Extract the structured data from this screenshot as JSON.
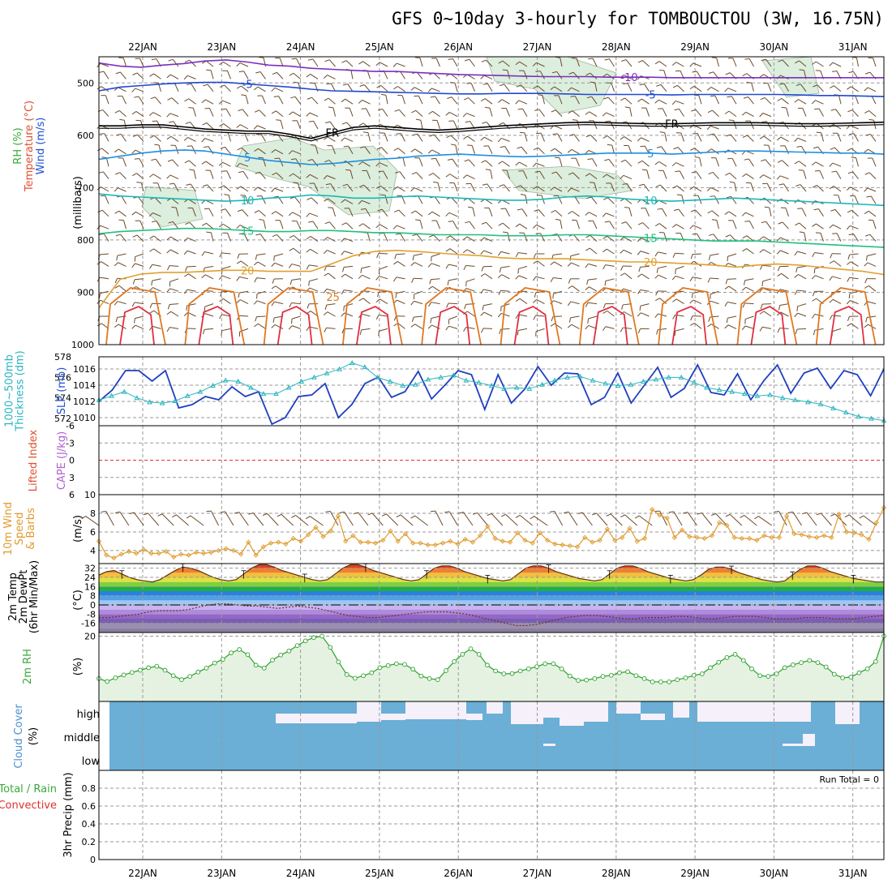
{
  "title": "GFS 0~10day 3-hourly for TOMBOUCTOU (3W, 16.75N)",
  "dates": [
    "22JAN",
    "23JAN",
    "24JAN",
    "25JAN",
    "26JAN",
    "27JAN",
    "28JAN",
    "29JAN",
    "30JAN",
    "31JAN"
  ],
  "colors": {
    "cloud": "#6baed6",
    "cloud_clear": "#f5f0fa",
    "rh_fill": "#e5f2e2",
    "rh_line": "#2ca02c",
    "slp": "#1f3fbf",
    "thick": "#2ab5c0",
    "wind": "#e09a2c",
    "barb": "#6b4a2a",
    "li_line": "#e03030"
  },
  "chart_data": [
    {
      "name": "Temperature/RH/Wind cross-section",
      "type": "contour",
      "ylabel_left": [
        "RH (%)",
        "Temperature (°C)",
        "Wind (m/s)"
      ],
      "ylabel_right": "(millibars)",
      "yticks": [
        500,
        600,
        700,
        800,
        900,
        1000
      ],
      "ylim": [
        450,
        1000
      ],
      "isotherms": [
        {
          "level": "-10",
          "color": "#7b2fbf",
          "p": [
            462,
            468,
            470,
            466,
            463,
            458,
            456,
            460,
            466,
            468,
            472,
            474,
            476,
            478,
            478,
            480,
            482,
            484,
            485,
            486,
            487,
            488,
            488,
            488,
            489,
            489,
            489,
            490,
            490,
            490,
            490,
            490,
            490,
            490,
            490,
            490,
            490,
            490
          ]
        },
        {
          "level": "-5",
          "color": "#2049d0",
          "p": [
            515,
            508,
            505,
            502,
            500,
            499,
            499,
            502,
            505,
            508,
            512,
            515,
            516,
            517,
            518,
            519,
            520,
            521,
            521,
            520,
            520,
            520,
            521,
            522,
            522,
            522,
            522,
            523,
            522,
            522,
            522,
            522,
            522,
            523,
            524,
            524,
            525,
            526
          ]
        },
        {
          "level": "FR",
          "color": "#000000",
          "p": [
            582,
            582,
            580,
            580,
            584,
            588,
            590,
            592,
            592,
            598,
            606,
            595,
            585,
            582,
            585,
            588,
            590,
            588,
            585,
            582,
            580,
            578,
            576,
            575,
            576,
            577,
            578,
            578,
            577,
            576,
            576,
            576,
            577,
            578,
            578,
            577,
            576,
            575
          ]
        },
        {
          "level": "5",
          "color": "#1f8fe0",
          "p": [
            646,
            640,
            634,
            630,
            628,
            630,
            636,
            642,
            648,
            652,
            656,
            654,
            650,
            646,
            644,
            640,
            638,
            636,
            638,
            640,
            641,
            640,
            638,
            636,
            634,
            634,
            634,
            636,
            634,
            632,
            630,
            630,
            631,
            632,
            633,
            634,
            634,
            636
          ]
        },
        {
          "level": "10",
          "color": "#18b8b8",
          "p": [
            712,
            716,
            718,
            720,
            722,
            724,
            726,
            724,
            720,
            718,
            714,
            716,
            720,
            720,
            718,
            716,
            718,
            720,
            722,
            724,
            724,
            722,
            718,
            716,
            718,
            722,
            724,
            726,
            724,
            722,
            720,
            722,
            724,
            726,
            728,
            730,
            732,
            734
          ]
        },
        {
          "level": "15",
          "color": "#20c080",
          "p": [
            788,
            784,
            782,
            780,
            778,
            778,
            780,
            782,
            784,
            784,
            782,
            782,
            784,
            786,
            786,
            788,
            790,
            790,
            790,
            792,
            792,
            792,
            790,
            790,
            792,
            794,
            796,
            798,
            800,
            802,
            802,
            802,
            804,
            806,
            808,
            810,
            812,
            814
          ]
        },
        {
          "level": "20",
          "color": "#e0a030",
          "p": [
            930,
            875,
            865,
            862,
            862,
            860,
            858,
            858,
            860,
            860,
            860,
            845,
            830,
            822,
            820,
            822,
            825,
            828,
            830,
            834,
            836,
            836,
            836,
            838,
            840,
            842,
            842,
            844,
            846,
            848,
            852,
            848,
            846,
            848,
            852,
            856,
            860,
            866
          ]
        }
      ]
    },
    {
      "name": "Thickness / SLP",
      "type": "line",
      "ylabel_left": [
        "1000~500mb",
        "Thickness (dm)"
      ],
      "ylabel_right": "SLP (mb)",
      "yticks_left": [
        572,
        574,
        576,
        578
      ],
      "yticks_right": [
        1010,
        1012,
        1014,
        1016
      ],
      "ylim_left": [
        571.3,
        578
      ],
      "ylim_right": [
        1009,
        1017.5
      ],
      "series": [
        {
          "name": "SLP",
          "color": "#1f3fbf",
          "values": [
            1012,
            1013.4,
            1015.8,
            1015.8,
            1014.5,
            1015.8,
            1011.2,
            1011.6,
            1012.6,
            1012.2,
            1013.8,
            1012.6,
            1013.2,
            1009.2,
            1010,
            1012.6,
            1012.8,
            1014.2,
            1010,
            1011.6,
            1014.2,
            1015,
            1012.5,
            1013.2,
            1015.7,
            1012.3,
            1014,
            1015.8,
            1015.3,
            1011,
            1015.3,
            1011.8,
            1013.5,
            1016.3,
            1014,
            1015.5,
            1015.4,
            1011.6,
            1012.5,
            1015.5,
            1011.8,
            1014,
            1016.2,
            1012.5,
            1013.6,
            1016.5,
            1013.1,
            1012.8,
            1015.4,
            1012.2,
            1014.6,
            1016.5,
            1013,
            1015.5,
            1016.1,
            1013.6,
            1015.8,
            1015.3,
            1012.7,
            1016
          ]
        },
        {
          "name": "Thickness",
          "color": "#2ab5c0",
          "values": [
            573.8,
            574.2,
            574.6,
            574.0,
            573.6,
            573.5,
            573.7,
            574.2,
            574.6,
            575.2,
            575.7,
            575.6,
            575.0,
            574.4,
            574.4,
            575.0,
            575.6,
            576.0,
            576.4,
            576.8,
            577.4,
            577.0,
            576.0,
            575.6,
            575.2,
            575.3,
            575.8,
            576.0,
            576.2,
            575.7,
            575.5,
            575.2,
            574.9,
            575.0,
            574.9,
            575.3,
            575.7,
            576.0,
            576.1,
            575.7,
            575.4,
            575.2,
            575.3,
            575.6,
            575.8,
            576.0,
            576.0,
            575.5,
            575.0,
            574.8,
            574.6,
            574.4,
            574.2,
            574.3,
            574.0,
            573.8,
            573.6,
            573.4,
            573.0,
            572.6,
            572.2,
            572.0,
            571.8
          ]
        }
      ]
    },
    {
      "name": "Lifted Index / CAPE",
      "type": "line",
      "ylabel_left": "Lifted Index",
      "ylabel_right": "CAPE (J/kg)",
      "yticks": [
        "-6",
        "-3",
        "0",
        "3",
        "6"
      ],
      "ylim": [
        -6,
        6
      ],
      "series": [
        {
          "name": "Lifted Index",
          "values": [
            0
          ]
        }
      ]
    },
    {
      "name": "10m Wind Speed & Barbs",
      "type": "line",
      "ylabel_left": [
        "10m Wind",
        "Speed",
        "& Barbs"
      ],
      "ylabel_right": "(m/s)",
      "yticks": [
        4,
        6,
        8,
        10
      ],
      "ylim": [
        2.6,
        10
      ],
      "series": [
        {
          "name": "Wind Speed",
          "values": [
            5.0,
            3.5,
            3.2,
            3.6,
            3.9,
            3.7,
            4.1,
            3.7,
            3.7,
            3.9,
            3.3,
            3.6,
            3.5,
            3.8,
            3.7,
            3.8,
            4.0,
            4.2,
            4.0,
            3.6,
            4.9,
            3.5,
            4.4,
            4.8,
            4.9,
            4.7,
            5.3,
            5.0,
            5.7,
            6.5,
            5.5,
            6.1,
            7.7,
            5.0,
            5.6,
            4.9,
            4.9,
            4.8,
            5.1,
            6.1,
            5.0,
            5.8,
            4.8,
            4.8,
            4.6,
            4.6,
            4.8,
            5.0,
            4.7,
            5.2,
            4.9,
            5.6,
            6.6,
            5.3,
            5.0,
            4.9,
            5.9,
            5.1,
            4.8,
            5.9,
            5.1,
            4.7,
            4.6,
            4.5,
            4.4,
            5.4,
            4.9,
            5.1,
            6.3,
            5.1,
            5.4,
            6.4,
            5.0,
            5.3,
            8.4,
            7.8,
            7.5,
            5.4,
            6.2,
            5.5,
            5.4,
            5.3,
            5.6,
            7.0,
            6.7,
            5.4,
            5.3,
            5.3,
            5.1,
            5.6,
            5.4,
            5.4,
            7.7,
            5.8,
            5.7,
            5.5,
            5.4,
            5.6,
            5.4,
            7.9,
            6.0,
            5.9,
            5.7,
            5.2,
            7.0,
            8.6
          ]
        }
      ]
    },
    {
      "name": "2m Temp / DewPt",
      "type": "area",
      "ylabel_left": [
        "2m Temp",
        "2m DewPt",
        "(6hr Min/Max)"
      ],
      "ylabel_right": "(°C)",
      "yticks": [
        -16,
        -8,
        0,
        8,
        16,
        24,
        32
      ],
      "ylim": [
        -24,
        36
      ],
      "series": [
        {
          "name": "2m Temp",
          "values": [
            26,
            29,
            30,
            27,
            24,
            22,
            21,
            20,
            22,
            26,
            30,
            33,
            32,
            30,
            27,
            24,
            22,
            21,
            22,
            27,
            32,
            35,
            35,
            33,
            30,
            28,
            26,
            24,
            22,
            21,
            22,
            27,
            32,
            35,
            35,
            33,
            30,
            28,
            26,
            24,
            22,
            21,
            22,
            27,
            32,
            34,
            34,
            32,
            29,
            27,
            25,
            23,
            22,
            21,
            22,
            27,
            32,
            34,
            34,
            32,
            29,
            27,
            25,
            23,
            22,
            21,
            22,
            27,
            32,
            34,
            34,
            32,
            29,
            27,
            25,
            23,
            22,
            21,
            22,
            26,
            31,
            33,
            33,
            31,
            28,
            26,
            24,
            22,
            21,
            20,
            21,
            26,
            31,
            34,
            34,
            32,
            29,
            27,
            25,
            23,
            22,
            21,
            20,
            20
          ]
        },
        {
          "name": "2m DewPt",
          "values": [
            -11,
            -11,
            -10,
            -9,
            -8,
            -6,
            -5,
            -5,
            -5,
            -4,
            -2,
            0,
            1,
            1,
            0,
            -1,
            -1,
            -2,
            -3,
            -2,
            -1,
            -2,
            -3,
            -5,
            -7,
            -9,
            -10,
            -11,
            -11,
            -10,
            -9,
            -8,
            -7,
            -6,
            -6,
            -6,
            -7,
            -8,
            -10,
            -12,
            -14,
            -16,
            -18,
            -18,
            -17,
            -15,
            -13,
            -11,
            -10,
            -9,
            -9,
            -10,
            -11,
            -12,
            -12,
            -11,
            -11,
            -11,
            -10,
            -10,
            -11,
            -12,
            -12,
            -11,
            -10,
            -10,
            -10,
            -11,
            -12,
            -12,
            -12,
            -11,
            -11,
            -11,
            -12,
            -12,
            -12,
            -11,
            -10,
            -9
          ]
        }
      ]
    },
    {
      "name": "2m RH",
      "type": "area",
      "ylabel_left": "2m RH",
      "ylabel_right": "(%)",
      "yticks": [
        20
      ],
      "ylim": [
        2,
        21
      ],
      "series": [
        {
          "name": "2m RH",
          "values": [
            8.3,
            7.5,
            8.5,
            9.3,
            10.0,
            10.6,
            11.3,
            11.7,
            10.6,
            9.1,
            8.0,
            8.9,
            10.1,
            11.2,
            12.6,
            13.6,
            15.4,
            16.3,
            14.9,
            12.0,
            11.2,
            13.4,
            14.8,
            15.9,
            17.4,
            18.7,
            19.6,
            20.0,
            16.9,
            12.9,
            9.4,
            8.4,
            9.1,
            9.9,
            11.3,
            11.9,
            12.4,
            12.2,
            10.9,
            9.0,
            8.3,
            8.0,
            10.5,
            13.0,
            15.0,
            16.5,
            15.0,
            12.0,
            10.4,
            9.6,
            9.7,
            10.4,
            11.0,
            11.6,
            12.4,
            12.4,
            11.0,
            9.0,
            7.8,
            7.9,
            8.3,
            8.9,
            9.2,
            9.9,
            10.2,
            9.1,
            8.3,
            7.4,
            7.4,
            7.4,
            8.0,
            8.5,
            9.2,
            9.6,
            11.3,
            12.8,
            14.1,
            15.0,
            13.3,
            11.0,
            9.1,
            8.9,
            9.6,
            11.3,
            12.1,
            12.7,
            13.3,
            12.7,
            11.5,
            9.5,
            8.5,
            8.7,
            9.9,
            11.0,
            13.0,
            20.0
          ]
        }
      ]
    },
    {
      "name": "Cloud Cover",
      "type": "heatmap",
      "ylabel_left": "Cloud Cover",
      "ylabel_right": "(%)",
      "levels": [
        "high",
        "middle",
        "low"
      ]
    },
    {
      "name": "3hr Precip",
      "type": "bar",
      "ylabel_left": [
        "Total / Rain",
        "Convective"
      ],
      "ylabel_right": "3hr Precip (mm)",
      "yticks": [
        "0",
        "0.2",
        "0.4",
        "0.6",
        "0.8"
      ],
      "ylim": [
        0,
        1
      ],
      "annotation": "Run Total = 0",
      "values": []
    }
  ]
}
